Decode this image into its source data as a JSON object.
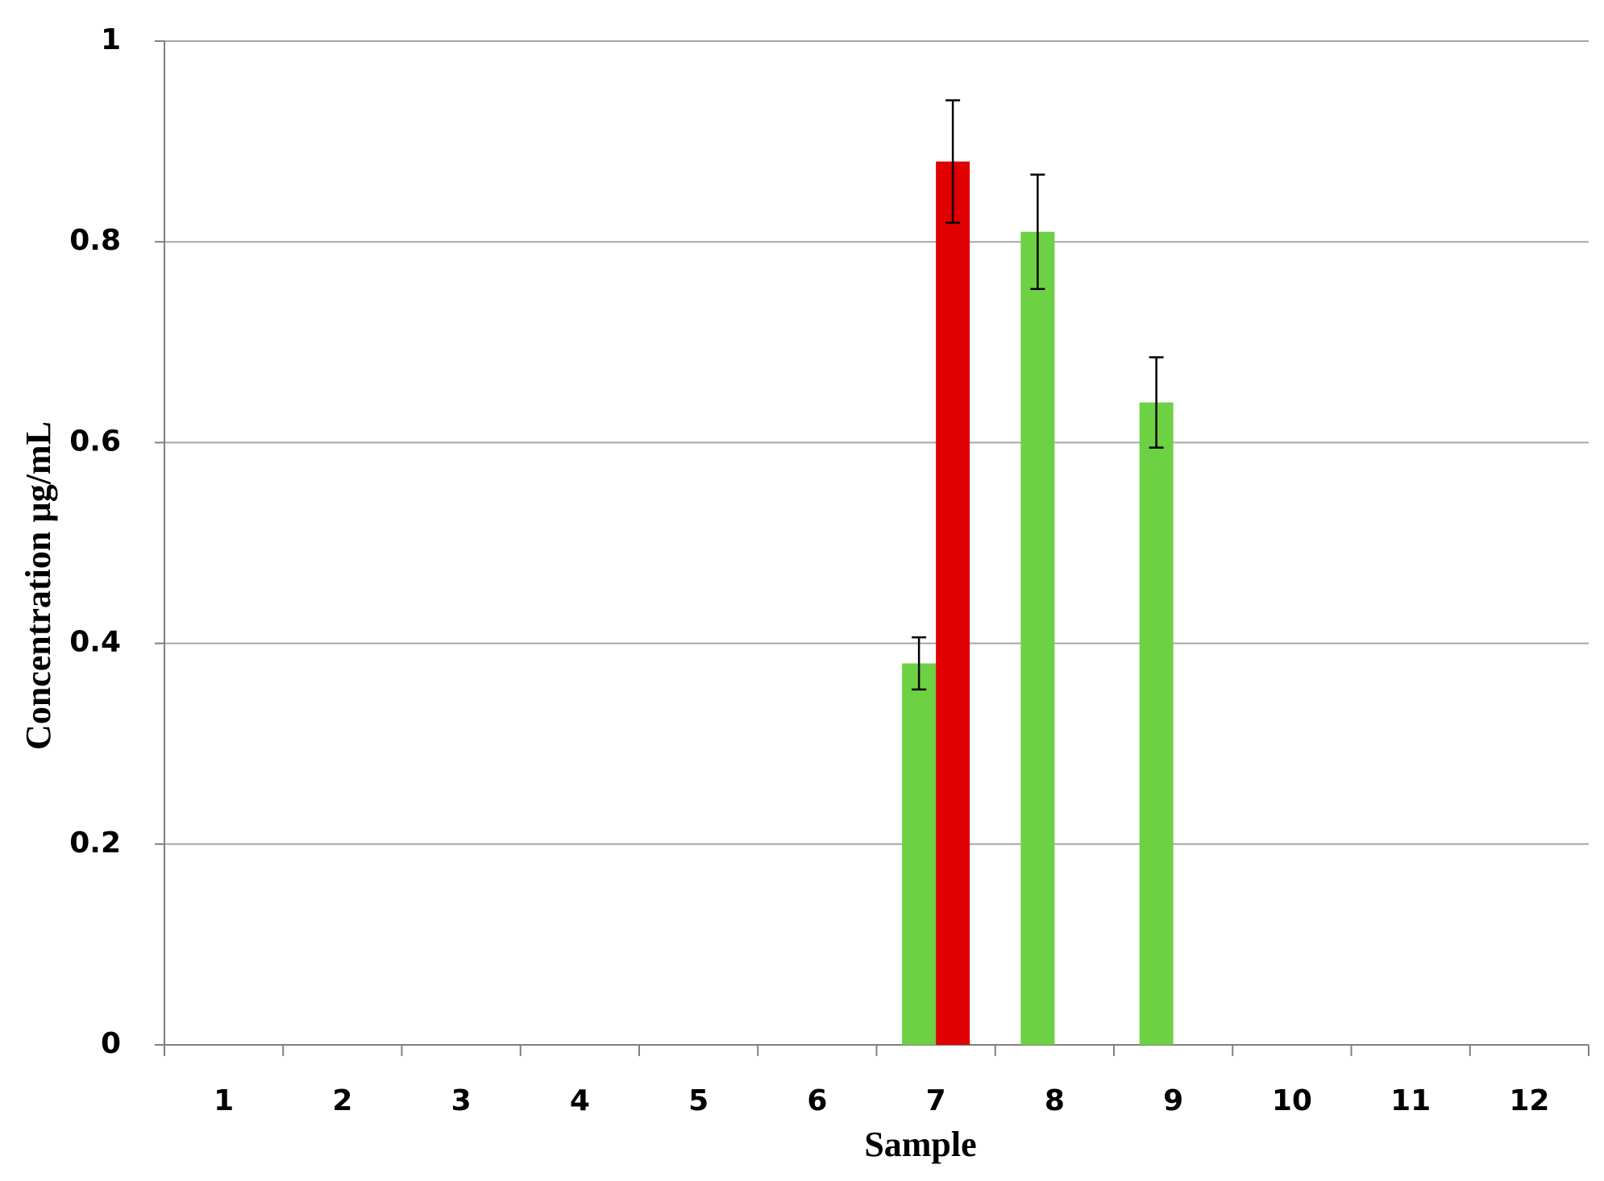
{
  "chart_data": {
    "type": "bar",
    "x_label": "Sample",
    "y_label": "Concentration µg/mL",
    "categories": [
      "1",
      "2",
      "3",
      "4",
      "5",
      "6",
      "7",
      "8",
      "9",
      "10",
      "11",
      "12"
    ],
    "series": [
      {
        "color": "#6dd144",
        "values": [
          null,
          null,
          null,
          null,
          null,
          null,
          0.38,
          0.81,
          0.64,
          null,
          null,
          null
        ],
        "errors": [
          null,
          null,
          null,
          null,
          null,
          null,
          0.026,
          0.057,
          0.045,
          null,
          null,
          null
        ]
      },
      {
        "color": "#e00000",
        "values": [
          null,
          null,
          null,
          null,
          null,
          null,
          0.88,
          null,
          null,
          null,
          null,
          null
        ],
        "errors": [
          null,
          null,
          null,
          null,
          null,
          null,
          0.061,
          null,
          null,
          null,
          null,
          null
        ]
      }
    ],
    "ylim": [
      0,
      1
    ],
    "yticks": [
      0,
      0.2,
      0.4,
      0.6,
      0.8,
      1
    ],
    "grid": true
  }
}
